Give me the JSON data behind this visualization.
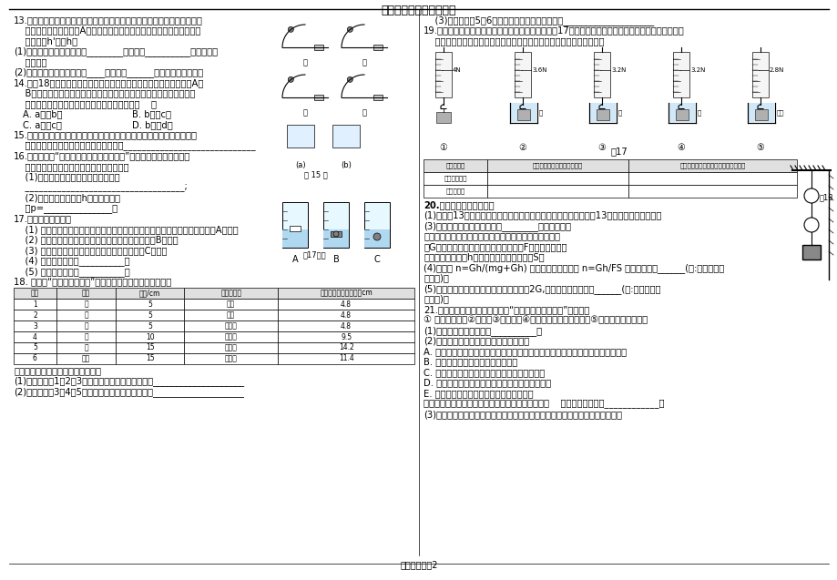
{
  "title": "初中物理实验题专题训练",
  "page": "就就题吐尔第2",
  "background_color": "#ffffff",
  "text_color": "#000000",
  "line_color": "#000000",
  "font_size": 7.2,
  "table_18_headers": [
    "序号",
    "液体",
    "深度/cm",
    "橡皮膜方向",
    "压强计左右液面高度巪cm"
  ],
  "table_18_rows": [
    [
      "1",
      "水",
      "5",
      "朝上",
      "4.8"
    ],
    [
      "2",
      "水",
      "5",
      "朝下",
      "4.8"
    ],
    [
      "3",
      "水",
      "5",
      "朝侧面",
      "4.8"
    ],
    [
      "4",
      "水",
      "10",
      "朝侧面",
      "9.5"
    ],
    [
      "5",
      "水",
      "15",
      "朝侧面",
      "14.2"
    ],
    [
      "6",
      "酒精",
      "15",
      "朝侧面",
      "11.4"
    ]
  ],
  "table_19_headers": [
    "探究的因素",
    "浮力的大小与液体密度的关系",
    "浮力的大小与物体排开液体体积的关系"
  ],
  "table_19_rows": [
    [
      "选用的示意图",
      "",
      ""
    ],
    [
      "探究的结果",
      "",
      ""
    ]
  ],
  "spring_values": [
    "4N",
    "3.6N",
    "3.2N",
    "3.2N",
    "2.8N"
  ],
  "circle_nums": [
    "①",
    "②",
    "③",
    "④",
    "⑤"
  ]
}
